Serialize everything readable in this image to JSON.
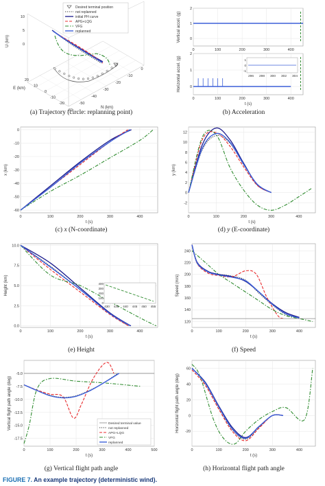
{
  "captions": {
    "a": "(a) Trajectory (circle: replanning point)",
    "b": "(b) Acceleration",
    "c_pre": "(c)",
    "c_var": "x",
    "c_post": "(N-coordinate)",
    "d_pre": "(d)",
    "d_var": "y",
    "d_post": "(E-coordinate)",
    "e": "(e) Height",
    "f": "(f) Speed",
    "g": "(g) Vertical flight path angle",
    "h": "(h) Horizontal flight path angle"
  },
  "figure_caption": {
    "label": "FIGURE 7.",
    "text": "An example trajectory (deterministic wind)."
  },
  "legend_a": [
    "Desired terminal position",
    "not replanned",
    "initial PH curve",
    "APG+LQG",
    "VFG",
    "replanned"
  ],
  "legend_g": [
    "Desired terminal value",
    "not replanned",
    "APG+LQG",
    "VFG",
    "replanned"
  ],
  "colors": {
    "not_replanned": "#333333",
    "initial_ph": "#1a1a8c",
    "apg_lqg": "#e8292b",
    "vfg": "#2e8b2e",
    "replanned": "#3b5fd9",
    "desired": "#888888"
  },
  "chart_data": [
    {
      "id": "a",
      "type": "line",
      "title": "",
      "xlabel": "E (km)",
      "ylabel": "U (km)",
      "zlabel": "N (km)",
      "u_ticks": [
        "10",
        "5",
        "0"
      ],
      "e_ticks": [
        "20",
        "10",
        "0",
        "-10",
        "-20"
      ],
      "n_ticks": [
        "-60",
        "-50",
        "-40",
        "-30",
        "-20",
        "-10",
        "0"
      ]
    },
    {
      "id": "b1",
      "type": "line",
      "title": "",
      "xlabel": "",
      "ylabel": "Vertical accel. (g)",
      "xlim": [
        0,
        450
      ],
      "ylim": [
        -0.5,
        2
      ],
      "xticks": [
        "0",
        "100",
        "200",
        "300",
        "400"
      ],
      "yticks": [
        "2",
        "1",
        "0"
      ],
      "series": [
        {
          "name": "replanned",
          "x": [
            0,
            100,
            200,
            300,
            400,
            450
          ],
          "y": [
            1,
            1,
            1,
            1,
            1,
            1
          ]
        }
      ]
    },
    {
      "id": "b2",
      "type": "line",
      "title": "",
      "xlabel": "t (s)",
      "ylabel": "Horizontal accel. (g)",
      "xlim": [
        0,
        450
      ],
      "ylim": [
        -0.5,
        2
      ],
      "xticks": [
        "0",
        "100",
        "200",
        "300",
        "400"
      ],
      "yticks": [
        "2",
        "1",
        "0"
      ],
      "inset": {
        "xticks": [
          "296",
          "298",
          "300",
          "302",
          "304"
        ],
        "yticks": [
          "1",
          "0",
          "-1"
        ]
      },
      "series": [
        {
          "name": "replanned",
          "x": [
            0,
            100,
            200,
            300,
            400
          ],
          "y": [
            0,
            0,
            0,
            0,
            0
          ]
        }
      ]
    },
    {
      "id": "c",
      "type": "line",
      "title": "",
      "xlabel": "t (s)",
      "ylabel": "x (km)",
      "xlim": [
        0,
        460
      ],
      "ylim": [
        -62,
        2
      ],
      "xticks": [
        "0",
        "100",
        "200",
        "300",
        "400"
      ],
      "yticks": [
        "0",
        "-10",
        "-20",
        "-30",
        "-40",
        "-50",
        "-60"
      ],
      "series": [
        {
          "name": "not replanned",
          "x": [
            0,
            100,
            200,
            300,
            365
          ],
          "y": [
            -60,
            -43,
            -25,
            -9,
            0
          ]
        },
        {
          "name": "initial PH curve",
          "x": [
            0,
            100,
            200,
            300,
            372
          ],
          "y": [
            -60,
            -42,
            -24,
            -8,
            0
          ]
        },
        {
          "name": "APG+LQG",
          "x": [
            0,
            100,
            200,
            300,
            360
          ],
          "y": [
            -60,
            -43,
            -26,
            -9,
            0
          ]
        },
        {
          "name": "VFG",
          "x": [
            0,
            100,
            200,
            300,
            400,
            445
          ],
          "y": [
            -60,
            -46,
            -34,
            -21,
            -8,
            0
          ]
        },
        {
          "name": "replanned",
          "x": [
            0,
            100,
            200,
            300,
            368
          ],
          "y": [
            -60,
            -43,
            -25,
            -9,
            0
          ]
        }
      ]
    },
    {
      "id": "d",
      "type": "line",
      "title": "",
      "xlabel": "t (s)",
      "ylabel": "y (km)",
      "xlim": [
        0,
        460
      ],
      "ylim": [
        -4,
        13
      ],
      "xticks": [
        "0",
        "100",
        "200",
        "300",
        "400"
      ],
      "yticks": [
        "12",
        "10",
        "8",
        "6",
        "4",
        "2",
        "0",
        "-2"
      ],
      "series": [
        {
          "name": "not replanned",
          "x": [
            0,
            50,
            100,
            150,
            200,
            250,
            300
          ],
          "y": [
            0,
            8.5,
            11.3,
            9.8,
            5.5,
            1.6,
            0
          ]
        },
        {
          "name": "initial PH curve",
          "x": [
            0,
            50,
            100,
            150,
            200,
            250,
            300
          ],
          "y": [
            0,
            9.5,
            12.8,
            10.5,
            5.8,
            1.5,
            0
          ]
        },
        {
          "name": "APG+LQG",
          "x": [
            0,
            50,
            100,
            150,
            200,
            250,
            300
          ],
          "y": [
            0,
            10.5,
            11.9,
            9.2,
            5.1,
            1.4,
            0
          ]
        },
        {
          "name": "VFG",
          "x": [
            0,
            50,
            100,
            150,
            200,
            250,
            300,
            350,
            400,
            445
          ],
          "y": [
            0,
            11,
            11.5,
            5,
            0.5,
            -2.5,
            -3.5,
            -2.5,
            -0.8,
            0.8
          ]
        },
        {
          "name": "replanned",
          "x": [
            0,
            50,
            100,
            150,
            200,
            250,
            300
          ],
          "y": [
            0,
            8.8,
            11.7,
            10,
            5.6,
            1.6,
            0
          ]
        }
      ]
    },
    {
      "id": "e",
      "type": "line",
      "title": "",
      "xlabel": "t (s)",
      "ylabel": "Height (km)",
      "xlim": [
        0,
        460
      ],
      "ylim": [
        -0.2,
        10.2
      ],
      "xticks": [
        "0",
        "100",
        "200",
        "300",
        "400"
      ],
      "yticks": [
        "10.0",
        "7.5",
        "5.0",
        "2.5",
        "0.0"
      ],
      "inset": {
        "xticks": [
          "430",
          "435",
          "440",
          "445",
          "450",
          "455"
        ],
        "yticks": [
          "400",
          "300",
          "200",
          "100",
          "0"
        ]
      },
      "series": [
        {
          "name": "not replanned",
          "x": [
            0,
            100,
            200,
            300,
            362
          ],
          "y": [
            10,
            7.4,
            4.5,
            1.5,
            0
          ]
        },
        {
          "name": "initial PH curve",
          "x": [
            0,
            100,
            200,
            300,
            370
          ],
          "y": [
            10,
            7.8,
            4.7,
            1.6,
            0
          ]
        },
        {
          "name": "APG+LQG",
          "x": [
            0,
            100,
            200,
            300,
            362
          ],
          "y": [
            10,
            7,
            4.2,
            1.4,
            0
          ]
        },
        {
          "name": "VFG",
          "x": [
            0,
            100,
            200,
            300,
            400,
            455
          ],
          "y": [
            10,
            6.3,
            5,
            3,
            1,
            0
          ]
        },
        {
          "name": "replanned",
          "x": [
            0,
            100,
            200,
            300,
            368
          ],
          "y": [
            10,
            7.3,
            4.5,
            1.5,
            0
          ]
        }
      ]
    },
    {
      "id": "f",
      "type": "line",
      "title": "",
      "xlabel": "t (s)",
      "ylabel": "Speed (m/s)",
      "xlim": [
        0,
        460
      ],
      "ylim": [
        110,
        252
      ],
      "xticks": [
        "0",
        "100",
        "200",
        "300",
        "400"
      ],
      "yticks": [
        "240",
        "220",
        "200",
        "180",
        "160",
        "140",
        "120"
      ],
      "series": [
        {
          "name": "not replanned",
          "x": [
            0,
            20,
            60,
            100,
            150,
            200,
            250,
            300,
            350,
            400
          ],
          "y": [
            250,
            218,
            204,
            200,
            197,
            190,
            168,
            148,
            132,
            126
          ]
        },
        {
          "name": "initial PH curve",
          "x": [
            0,
            20,
            60,
            100,
            150,
            200,
            250,
            300,
            350,
            400
          ],
          "y": [
            250,
            220,
            205,
            200,
            196,
            188,
            170,
            150,
            135,
            127
          ]
        },
        {
          "name": "APG+LQG",
          "x": [
            0,
            20,
            60,
            100,
            150,
            200,
            240,
            280,
            320,
            340
          ],
          "y": [
            250,
            218,
            202,
            198,
            196,
            206,
            200,
            160,
            130,
            125
          ]
        },
        {
          "name": "VFG",
          "x": [
            0,
            50,
            100,
            150,
            200,
            250,
            300,
            350,
            400,
            450
          ],
          "y": [
            240,
            220,
            200,
            185,
            170,
            155,
            140,
            130,
            125,
            120
          ]
        },
        {
          "name": "replanned",
          "x": [
            0,
            20,
            60,
            100,
            150,
            200,
            250,
            300,
            350,
            400
          ],
          "y": [
            250,
            219,
            204,
            199,
            195,
            189,
            170,
            149,
            133,
            126
          ]
        }
      ]
    },
    {
      "id": "g",
      "type": "line",
      "title": "",
      "xlabel": "t (s)",
      "ylabel": "Vertical flight path angle (deg)",
      "xlim": [
        0,
        500
      ],
      "ylim": [
        -19,
        -2.5
      ],
      "xticks": [
        "0",
        "100",
        "200",
        "300",
        "400",
        "500"
      ],
      "yticks": [
        "-5.0",
        "-7.5",
        "-10.0",
        "-12.5",
        "-15.0",
        "-17.5"
      ],
      "series": [
        {
          "name": "Desired terminal value",
          "x": [
            0,
            500
          ],
          "y": [
            -5,
            -5
          ]
        },
        {
          "name": "not replanned",
          "x": [
            0,
            50,
            100,
            150,
            200,
            250,
            300,
            360
          ],
          "y": [
            -7.2,
            -8.3,
            -9.2,
            -9.6,
            -9.3,
            -8.3,
            -7,
            -5
          ]
        },
        {
          "name": "APG+LQG",
          "x": [
            0,
            50,
            100,
            150,
            190,
            220,
            260,
            300,
            325,
            345
          ],
          "y": [
            -7.2,
            -8.2,
            -9,
            -9.5,
            -13.6,
            -11,
            -6.5,
            -3.5,
            -3,
            -5
          ]
        },
        {
          "name": "VFG",
          "x": [
            0,
            20,
            50,
            100,
            200,
            300,
            450
          ],
          "y": [
            -18.5,
            -15,
            -8,
            -6,
            -6.5,
            -6.8,
            -7.5
          ]
        },
        {
          "name": "replanned",
          "x": [
            0,
            50,
            100,
            150,
            200,
            250,
            300,
            365
          ],
          "y": [
            -7.2,
            -8.3,
            -9.3,
            -9.7,
            -9.4,
            -8.4,
            -7,
            -5
          ]
        }
      ]
    },
    {
      "id": "h",
      "type": "line",
      "title": "",
      "xlabel": "t (s)",
      "ylabel": "Horizontal flight path angle (deg)",
      "xlim": [
        0,
        460
      ],
      "ylim": [
        -39,
        70
      ],
      "xticks": [
        "0",
        "100",
        "200",
        "300",
        "400"
      ],
      "yticks": [
        "60",
        "40",
        "20",
        "0",
        "-20"
      ],
      "series": [
        {
          "name": "not replanned",
          "x": [
            0,
            50,
            100,
            150,
            200,
            250,
            300,
            340
          ],
          "y": [
            60,
            40,
            10,
            -18,
            -30,
            -15,
            0,
            0
          ]
        },
        {
          "name": "initial PH curve",
          "x": [
            0,
            50,
            100,
            150,
            200,
            250,
            300,
            340
          ],
          "y": [
            60,
            42,
            12,
            -15,
            -28,
            -14,
            0,
            0
          ]
        },
        {
          "name": "APG+LQG",
          "x": [
            0,
            50,
            100,
            150,
            200,
            250,
            300,
            340
          ],
          "y": [
            58,
            38,
            8,
            -20,
            -32,
            -16,
            0,
            0
          ]
        },
        {
          "name": "VFG",
          "x": [
            0,
            30,
            80,
            120,
            160,
            200,
            250,
            300,
            350,
            420,
            450
          ],
          "y": [
            65,
            50,
            -5,
            -30,
            -36,
            -20,
            -5,
            5,
            10,
            -5,
            60
          ]
        },
        {
          "name": "replanned",
          "x": [
            0,
            50,
            100,
            150,
            200,
            250,
            300,
            340
          ],
          "y": [
            60,
            41,
            11,
            -17,
            -29,
            -14,
            0,
            0
          ]
        }
      ]
    }
  ]
}
